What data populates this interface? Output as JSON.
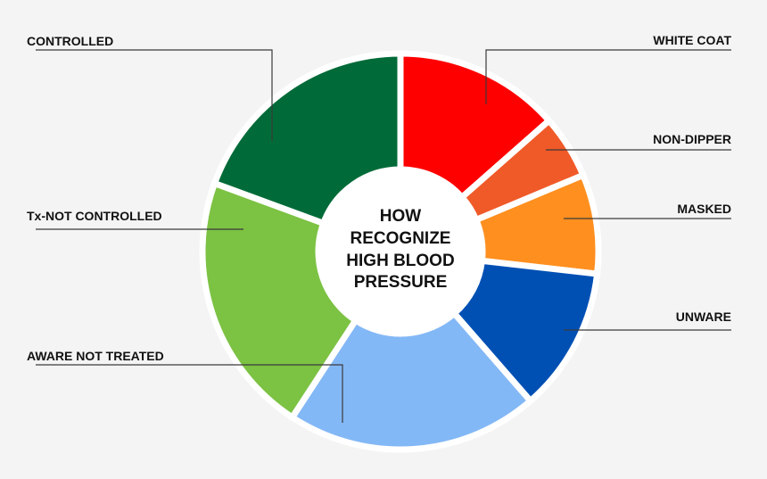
{
  "chart_data": {
    "type": "pie",
    "title": "",
    "center_label": [
      "HOW",
      "RECOGNIZE",
      "HIGH BLOOD",
      "PRESSURE"
    ],
    "slices": [
      {
        "name": "WHITE COAT",
        "value": 13.5,
        "color": "#ff0000"
      },
      {
        "name": "NON-DIPPER",
        "value": 5.2,
        "color": "#f05a28"
      },
      {
        "name": "MASKED",
        "value": 8.1,
        "color": "#ff8f1f"
      },
      {
        "name": "UNWARE",
        "value": 11.8,
        "color": "#0050b4"
      },
      {
        "name": "AWARE NOT TREATED",
        "value": 20.6,
        "color": "#83b8f6"
      },
      {
        "name": "Tx-NOT CONTROLLED",
        "value": 21.4,
        "color": "#7cc243"
      },
      {
        "name": "CONTROLLED",
        "value": 19.4,
        "color": "#006b38"
      }
    ],
    "legend": "none",
    "grid": false
  }
}
